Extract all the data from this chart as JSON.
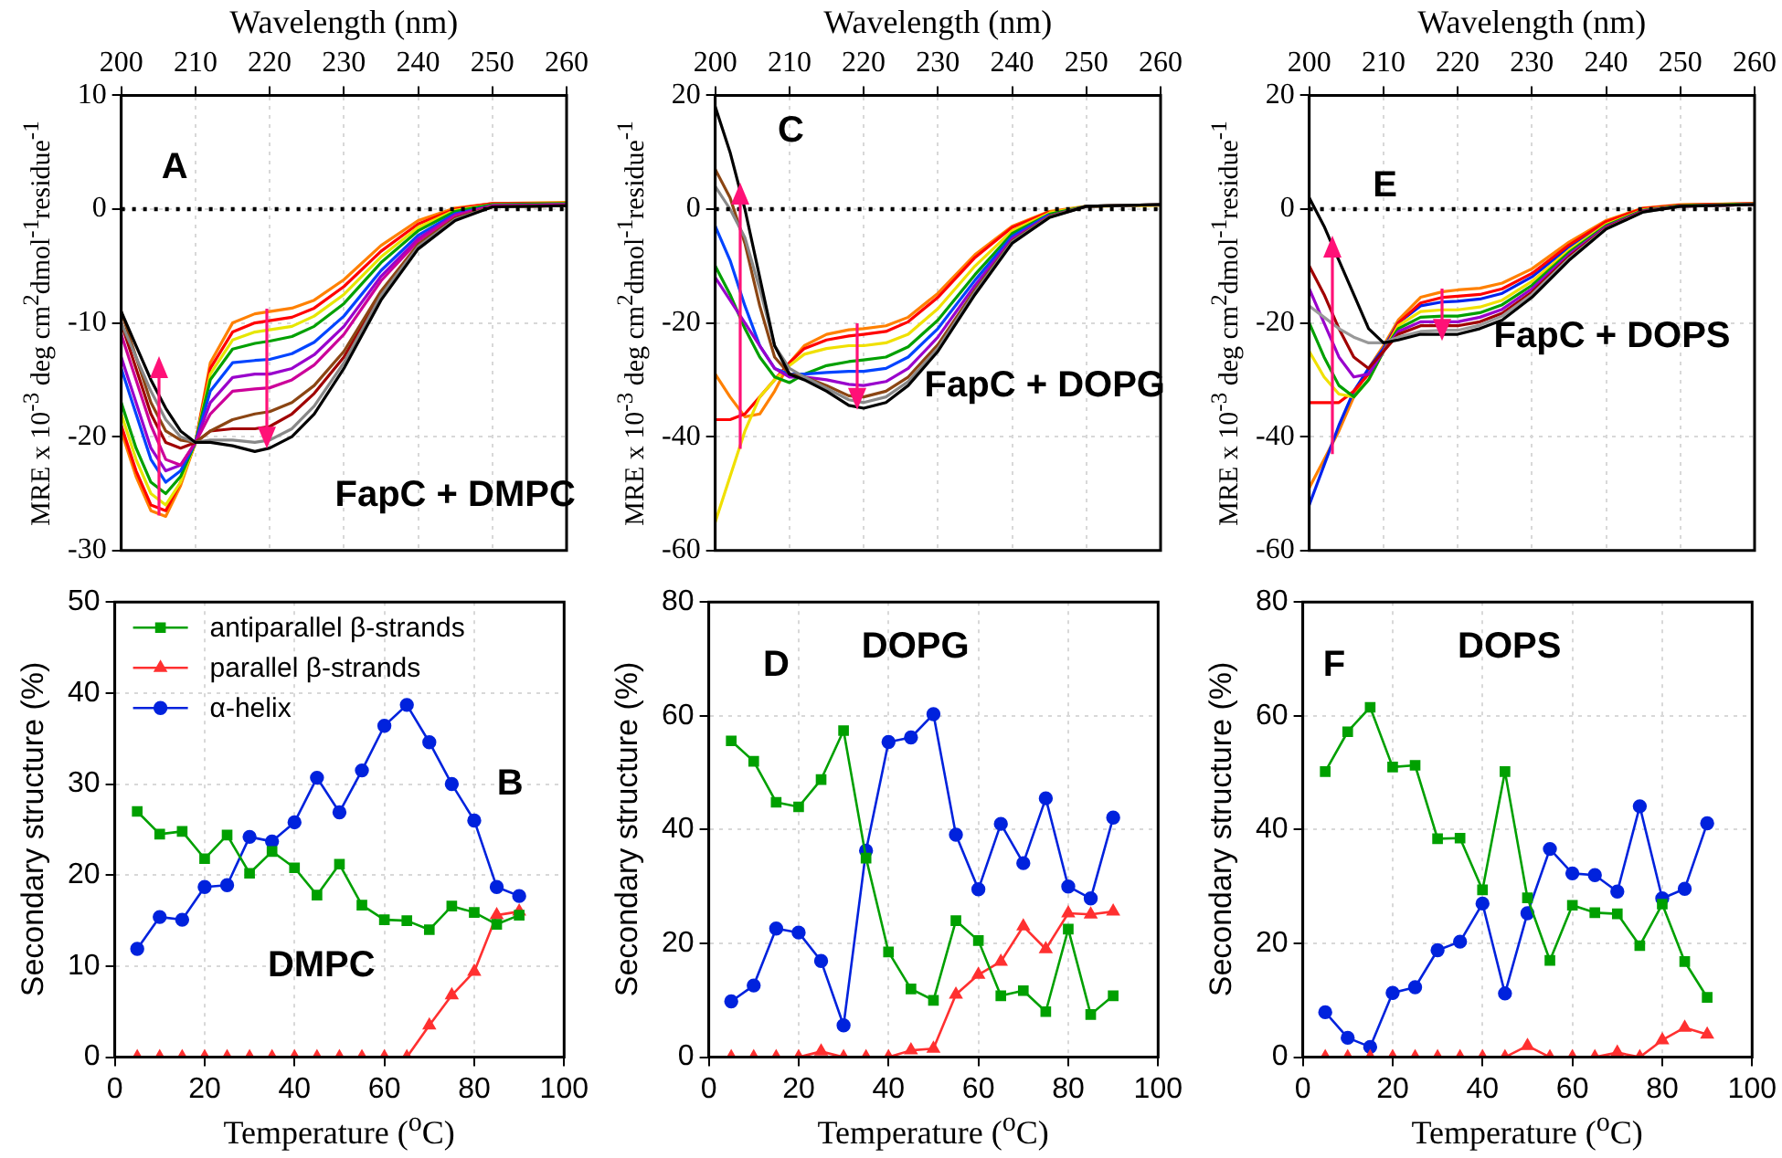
{
  "chart_data": [
    {
      "type": "line",
      "xlabel": "Wavelength (nm)",
      "ylabel": "MRE x 10$^{-3}$ deg cm$^{2}$dmol$^{-1}$residue$^{-1}$",
      "xlim": [
        200,
        260
      ],
      "xticks": [
        200,
        210,
        220,
        230,
        240,
        250,
        260
      ],
      "ylim": [
        -30,
        10
      ],
      "yticks": [
        -30,
        -20,
        -10,
        0,
        10
      ],
      "grid": true,
      "marker": "none",
      "annotations": [
        "A",
        "FapC + DMPC"
      ],
      "ref_lines": [
        {
          "axis": "y",
          "value": 0,
          "color": "#000000",
          "line_style": "dotted"
        }
      ],
      "x": [
        200,
        202,
        204,
        206,
        208,
        210,
        212,
        215,
        218,
        220,
        223,
        226,
        230,
        235,
        240,
        245,
        250,
        260
      ],
      "series": [
        {
          "color": "#000000",
          "values": [
            -9,
            -12,
            -15,
            -17.5,
            -19.5,
            -20.5,
            -20.5,
            -20.8,
            -21.3,
            -21,
            -20,
            -18,
            -14,
            -8,
            -3.5,
            -1,
            0.2,
            0.3
          ]
        },
        {
          "color": "#888888",
          "values": [
            -10,
            -13,
            -16,
            -18.5,
            -20,
            -20.5,
            -20.3,
            -20.3,
            -20.5,
            -20.3,
            -19.3,
            -17.3,
            -13.5,
            -7.6,
            -3.3,
            -0.9,
            0.2,
            0.3
          ]
        },
        {
          "color": "#8b4513",
          "values": [
            -9,
            -13,
            -17,
            -19.5,
            -20.3,
            -20.5,
            -19.5,
            -18.5,
            -18,
            -17.8,
            -17,
            -15.5,
            -12.5,
            -7.2,
            -3.1,
            -0.8,
            0.2,
            0.3
          ]
        },
        {
          "color": "#a00000",
          "values": [
            -10,
            -14,
            -18,
            -20.5,
            -21,
            -20.5,
            -19.5,
            -19.3,
            -19.3,
            -19.1,
            -18,
            -16.2,
            -13,
            -7.4,
            -3.2,
            -0.8,
            0.2,
            0.3
          ]
        },
        {
          "color": "#cc0099",
          "values": [
            -11,
            -15,
            -19,
            -22,
            -22.5,
            -20.5,
            -18,
            -16,
            -15.8,
            -15.7,
            -15,
            -13.7,
            -11,
            -6.3,
            -2.8,
            -0.6,
            0.3,
            0.4
          ]
        },
        {
          "color": "#9900cc",
          "values": [
            -13,
            -17,
            -21,
            -23,
            -22.5,
            -20.5,
            -17,
            -14.8,
            -14.5,
            -14.5,
            -14,
            -12.8,
            -10.3,
            -5.9,
            -2.6,
            -0.5,
            0.3,
            0.4
          ]
        },
        {
          "color": "#0044ff",
          "values": [
            -14,
            -18,
            -22,
            -24,
            -23,
            -20.5,
            -16,
            -13.5,
            -13.3,
            -13.2,
            -12.7,
            -11.7,
            -9.4,
            -5.4,
            -2.3,
            -0.4,
            0.3,
            0.4
          ]
        },
        {
          "color": "#00a000",
          "values": [
            -17,
            -21,
            -24,
            -25,
            -23.5,
            -20.5,
            -15,
            -12.3,
            -11.8,
            -11.6,
            -11.2,
            -10.3,
            -8.3,
            -4.7,
            -1.9,
            -0.2,
            0.4,
            0.5
          ]
        },
        {
          "color": "#e6e600",
          "values": [
            -18,
            -22,
            -25,
            -26,
            -24,
            -20.5,
            -14.5,
            -11.5,
            -10.8,
            -10.6,
            -10.3,
            -9.4,
            -7.5,
            -4.2,
            -1.6,
            -0.1,
            0.4,
            0.5
          ]
        },
        {
          "color": "#ff0000",
          "values": [
            -19,
            -23,
            -26,
            -26.5,
            -24,
            -20.5,
            -14,
            -10.8,
            -10,
            -9.8,
            -9.5,
            -8.7,
            -6.8,
            -3.7,
            -1.3,
            0,
            0.5,
            0.5
          ]
        },
        {
          "color": "#ff8000",
          "values": [
            -19.5,
            -23.5,
            -26.5,
            -27,
            -24.3,
            -20.5,
            -13.5,
            -10,
            -9.2,
            -9,
            -8.7,
            -8,
            -6.2,
            -3.2,
            -1,
            0.1,
            0.5,
            0.6
          ]
        }
      ]
    },
    {
      "type": "line",
      "xlabel": "Wavelength (nm)",
      "ylabel": "MRE x 10$^{-3}$ deg cm$^{2}$dmol$^{-1}$residue$^{-1}$",
      "xlim": [
        200,
        260
      ],
      "xticks": [
        200,
        210,
        220,
        230,
        240,
        250,
        260
      ],
      "ylim": [
        -60,
        20
      ],
      "yticks": [
        -60,
        -40,
        -20,
        0,
        20
      ],
      "grid": true,
      "marker": "none",
      "annotations": [
        "C",
        "FapC + DOPG"
      ],
      "ref_lines": [
        {
          "axis": "y",
          "value": 0,
          "color": "#000000",
          "line_style": "dotted"
        }
      ],
      "x": [
        200,
        202,
        204,
        206,
        208,
        210,
        212,
        215,
        218,
        220,
        223,
        226,
        230,
        235,
        240,
        245,
        250,
        260
      ],
      "series": [
        {
          "color": "#000000",
          "values": [
            18,
            10,
            0,
            -12,
            -24,
            -29,
            -30,
            -32,
            -34.5,
            -35,
            -34,
            -31,
            -25,
            -15,
            -6,
            -1.5,
            0.5,
            0.8
          ]
        },
        {
          "color": "#888888",
          "values": [
            4,
            0,
            -5,
            -14,
            -24,
            -28,
            -29.5,
            -31.5,
            -33.5,
            -34,
            -33,
            -30.3,
            -24.5,
            -14.6,
            -5.8,
            -1.4,
            0.5,
            0.8
          ]
        },
        {
          "color": "#8b4513",
          "values": [
            7,
            2,
            -6,
            -17,
            -26,
            -29,
            -29.5,
            -31,
            -32.8,
            -33,
            -32,
            -29.5,
            -23.8,
            -14.2,
            -5.6,
            -1.3,
            0.5,
            0.8
          ]
        },
        {
          "color": "#9900cc",
          "values": [
            -12,
            -16,
            -20,
            -24,
            -28,
            -29.5,
            -29.5,
            -30,
            -30.8,
            -31,
            -30.3,
            -28,
            -22.5,
            -13.4,
            -5.2,
            -1.2,
            0.5,
            0.8
          ]
        },
        {
          "color": "#0044ff",
          "values": [
            -3,
            -9,
            -17,
            -24,
            -28,
            -29,
            -29,
            -28.7,
            -28.5,
            -28.5,
            -28,
            -26,
            -21,
            -12.5,
            -4.8,
            -1,
            null,
            null
          ]
        },
        {
          "color": "#00a000",
          "values": [
            -10,
            -15,
            -21,
            -26,
            -29.5,
            -30.5,
            -29,
            -27.5,
            -26.8,
            -26.5,
            -26,
            -24.2,
            -19.5,
            -11.5,
            -4.3,
            -0.9,
            0.5,
            0.8
          ]
        },
        {
          "color": "#f0e000",
          "values": [
            -55,
            -47,
            -39,
            -33,
            -30,
            -27.5,
            -25.5,
            -24.5,
            -24,
            -24,
            -23.5,
            -22,
            -17.5,
            -10,
            -3.8,
            -0.7,
            0.5,
            0.7
          ]
        },
        {
          "color": "#ff0000",
          "values": [
            -37,
            -37,
            -36,
            -33,
            -30,
            -27,
            -24.5,
            -23,
            -22.3,
            -22,
            -21.5,
            -19.8,
            -15.5,
            -8.5,
            -3.2,
            -0.5,
            null,
            null
          ]
        },
        {
          "color": "#ff8000",
          "values": [
            -29,
            -33,
            -36.5,
            -36,
            -32,
            -27,
            -24,
            -22,
            -21.2,
            -21,
            -20.5,
            -19,
            -14.8,
            -8,
            -3,
            -0.4,
            0.5,
            0.7
          ]
        }
      ]
    },
    {
      "type": "line",
      "xlabel": "Wavelength (nm)",
      "ylabel": "MRE x 10$^{-3}$ deg cm$^{2}$dmol$^{-1}$residue$^{-1}$",
      "xlim": [
        200,
        260
      ],
      "xticks": [
        200,
        210,
        220,
        230,
        240,
        250,
        260
      ],
      "ylim": [
        -60,
        20
      ],
      "yticks": [
        -60,
        -40,
        -20,
        0,
        20
      ],
      "grid": true,
      "marker": "none",
      "annotations": [
        "E",
        "FapC + DOPS"
      ],
      "ref_lines": [
        {
          "axis": "y",
          "value": 0,
          "color": "#000000",
          "line_style": "dotted"
        }
      ],
      "x": [
        200,
        202,
        204,
        206,
        208,
        210,
        212,
        215,
        218,
        220,
        223,
        226,
        230,
        235,
        240,
        245,
        250,
        260
      ],
      "series": [
        {
          "color": "#000000",
          "values": [
            2,
            -3,
            -9,
            -15,
            -21,
            -23.5,
            -23,
            -22,
            -22,
            -22,
            -21,
            -19.5,
            -15.5,
            -9,
            -3.5,
            -0.5,
            0.5,
            0.8
          ]
        },
        {
          "color": "#999999",
          "values": [
            -17,
            -19,
            -21,
            -22.5,
            -23.5,
            -23.5,
            -22.5,
            -21.5,
            -21.3,
            -21.3,
            -20.4,
            -18.8,
            -15,
            -8.7,
            -3.4,
            -0.5,
            0.5,
            0.8
          ]
        },
        {
          "color": "#a00000",
          "values": [
            -10,
            -15,
            -21,
            -26,
            -28,
            -25,
            -22,
            -20.5,
            -20.5,
            -20.5,
            -19.8,
            -18.3,
            -14.6,
            -8.4,
            -3.3,
            -0.4,
            0.5,
            0.8
          ]
        },
        {
          "color": "#9900cc",
          "values": [
            -14,
            -20,
            -26,
            -29.5,
            -29,
            -25,
            -21.5,
            -19.8,
            -19.8,
            -19.8,
            -19,
            -17.6,
            -14,
            -8,
            -3.1,
            -0.3,
            0.5,
            0.8
          ]
        },
        {
          "color": "#00a000",
          "values": [
            -20,
            -26,
            -31,
            -33,
            -30,
            -25,
            -21,
            -19,
            -18.8,
            -18.8,
            -18.2,
            -16.8,
            -13.4,
            -7.6,
            -2.9,
            -0.2,
            0.6,
            0.9
          ]
        },
        {
          "color": "#f0e000",
          "values": [
            -25,
            -29.5,
            -32.5,
            -33,
            -30,
            -25,
            -20.5,
            -18,
            -17.7,
            -17.7,
            -17.2,
            -16,
            -12.7,
            -7.2,
            -2.7,
            -0.1,
            0.6,
            0.9
          ]
        },
        {
          "color": "#ff0000",
          "values": [
            -34,
            -34,
            -34,
            -32,
            -29,
            -25,
            -20,
            -16.5,
            -15.5,
            -15.3,
            -15,
            -14,
            -11.3,
            -6.3,
            -2.2,
            0.1,
            0.7,
            1
          ]
        },
        {
          "color": "#0022ee",
          "values": [
            -52,
            -45,
            -38,
            -32,
            -28,
            -24.5,
            -20,
            -17,
            -16.3,
            -16.2,
            -15.8,
            -14.8,
            -11.9,
            -6.7,
            -2.4,
            null,
            null,
            null
          ]
        },
        {
          "color": "#ff8000",
          "values": [
            -49,
            -44,
            -39,
            -33,
            -28,
            -24,
            -19.5,
            -15.5,
            -14.5,
            -14.2,
            -13.9,
            -13,
            -10.5,
            -5.8,
            -2,
            0.2,
            0.8,
            1
          ]
        }
      ]
    },
    {
      "type": "line",
      "xlabel": "Temperature ($^{o}$C)",
      "ylabel": "Secondary structure (%)",
      "xlim": [
        0,
        100
      ],
      "xticks": [
        0,
        20,
        40,
        60,
        80,
        100
      ],
      "ylim": [
        0,
        50
      ],
      "yticks": [
        0,
        10,
        20,
        30,
        40,
        50
      ],
      "grid": true,
      "legend": "top left",
      "annotations": [
        "B",
        "DMPC"
      ],
      "x": [
        5,
        10,
        15,
        20,
        25,
        30,
        35,
        40,
        45,
        50,
        55,
        60,
        65,
        70,
        75,
        80,
        85,
        90
      ],
      "series": [
        {
          "name": "antiparallel β-strands",
          "color": "#00a000",
          "marker": "square",
          "values": [
            27,
            24.5,
            24.8,
            21.8,
            24.4,
            20.2,
            22.6,
            20.8,
            17.8,
            21.2,
            16.7,
            15.1,
            15,
            14,
            16.6,
            15.9,
            14.6,
            15.6
          ]
        },
        {
          "name": "parallel β-strands",
          "color": "#ff3030",
          "marker": "triangle",
          "values": [
            0,
            0,
            0,
            0,
            0,
            0,
            0,
            0,
            0,
            0,
            0,
            0,
            0,
            3.5,
            6.8,
            9.4,
            15.6,
            16
          ]
        },
        {
          "name": "α-helix",
          "color": "#0022dd",
          "marker": "circle",
          "values": [
            11.9,
            15.4,
            15.1,
            18.7,
            18.9,
            24.2,
            23.7,
            25.8,
            30.7,
            26.9,
            31.5,
            36.4,
            38.7,
            34.6,
            30,
            26,
            18.7,
            17.7
          ]
        }
      ]
    },
    {
      "type": "line",
      "xlabel": "Temperature ($^{o}$C)",
      "ylabel": "Secondary structure (%)",
      "xlim": [
        0,
        100
      ],
      "xticks": [
        0,
        20,
        40,
        60,
        80,
        100
      ],
      "ylim": [
        0,
        80
      ],
      "yticks": [
        0,
        20,
        40,
        60,
        80
      ],
      "grid": true,
      "annotations": [
        "D",
        "DOPG"
      ],
      "x": [
        5,
        10,
        15,
        20,
        25,
        30,
        35,
        40,
        45,
        50,
        55,
        60,
        65,
        70,
        75,
        80,
        85,
        90
      ],
      "series": [
        {
          "color": "#00a000",
          "marker": "square",
          "values": [
            55.6,
            52,
            44.8,
            44,
            48.8,
            57.4,
            35,
            18.5,
            12,
            10,
            24,
            20.5,
            10.8,
            11.7,
            8,
            22.5,
            7.5,
            10.8
          ]
        },
        {
          "color": "#ff3030",
          "marker": "triangle",
          "values": [
            0,
            0,
            0,
            0,
            1,
            0,
            0,
            0,
            1.2,
            1.5,
            11,
            14.5,
            16.8,
            23,
            19,
            25.3,
            25.1,
            25.6
          ]
        },
        {
          "color": "#0022dd",
          "marker": "circle",
          "values": [
            9.8,
            12.6,
            22.6,
            21.9,
            16.9,
            5.6,
            36.3,
            55.4,
            56.2,
            60.3,
            39.1,
            29.5,
            41,
            34.1,
            45.5,
            30,
            27.9,
            42.1
          ]
        }
      ]
    },
    {
      "type": "line",
      "xlabel": "Temperature ($^{o}$C)",
      "ylabel": "Secondary structure (%)",
      "xlim": [
        0,
        100
      ],
      "xticks": [
        0,
        20,
        40,
        60,
        80,
        100
      ],
      "ylim": [
        0,
        80
      ],
      "yticks": [
        0,
        20,
        40,
        60,
        80
      ],
      "grid": true,
      "annotations": [
        "F",
        "DOPS"
      ],
      "x": [
        5,
        10,
        15,
        20,
        25,
        30,
        35,
        40,
        45,
        50,
        55,
        60,
        65,
        70,
        75,
        80,
        85,
        90
      ],
      "series": [
        {
          "color": "#00a000",
          "marker": "square",
          "values": [
            50.2,
            57.2,
            61.5,
            51,
            51.3,
            38.4,
            38.5,
            29.4,
            50.2,
            28,
            17,
            26.7,
            25.4,
            25.2,
            19.6,
            26.9,
            16.8,
            10.5
          ]
        },
        {
          "color": "#ff3030",
          "marker": "triangle",
          "values": [
            0,
            0,
            0,
            0,
            0,
            0,
            0,
            0,
            0,
            2,
            0,
            0,
            0,
            0.8,
            0,
            3,
            5.2,
            4
          ]
        },
        {
          "color": "#0022dd",
          "marker": "circle",
          "values": [
            7.9,
            3.4,
            1.8,
            11.3,
            12.3,
            18.8,
            20.3,
            27,
            11.2,
            25.3,
            36.6,
            32.3,
            32,
            29.1,
            44.1,
            27.9,
            29.6,
            41.1
          ]
        }
      ]
    }
  ]
}
